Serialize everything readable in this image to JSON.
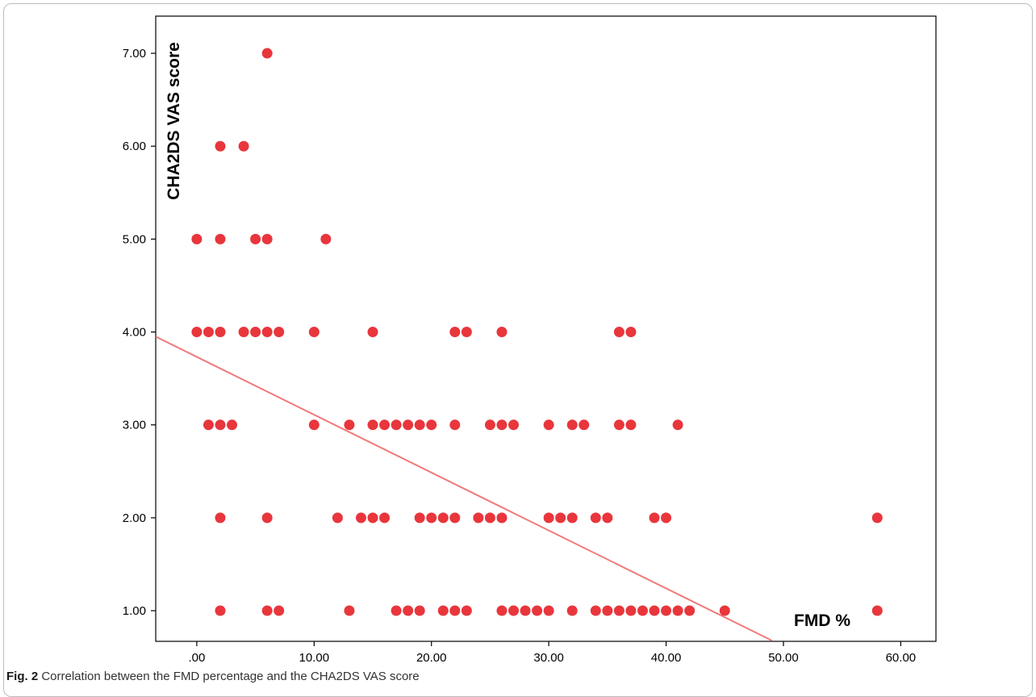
{
  "caption": {
    "label": "Fig. 2",
    "text": "Correlation between the FMD percentage and the CHA2DS VAS score"
  },
  "chart_data": {
    "type": "scatter",
    "title": "",
    "xlabel": "FMD %",
    "ylabel": "CHA2DS VAS score",
    "xlim": [
      -3.5,
      63
    ],
    "ylim": [
      0.67,
      7.4
    ],
    "x_ticks": [
      0,
      10,
      20,
      30,
      40,
      50,
      60
    ],
    "x_tick_labels": [
      ".00",
      "10.00",
      "20.00",
      "30.00",
      "40.00",
      "50.00",
      "60.00"
    ],
    "y_ticks": [
      1,
      2,
      3,
      4,
      5,
      6,
      7
    ],
    "y_tick_labels": [
      "1.00",
      "2.00",
      "3.00",
      "4.00",
      "5.00",
      "6.00",
      "7.00"
    ],
    "grid": false,
    "legend": "none",
    "point_color": "#e8363c",
    "line_color": "#f07a7a",
    "fit_line": {
      "x": [
        -3.5,
        49
      ],
      "y": [
        3.95,
        0.68
      ]
    },
    "points": [
      {
        "x": 6,
        "y": 7
      },
      {
        "x": 2,
        "y": 6
      },
      {
        "x": 4,
        "y": 6
      },
      {
        "x": 0,
        "y": 5
      },
      {
        "x": 2,
        "y": 5
      },
      {
        "x": 5,
        "y": 5
      },
      {
        "x": 6,
        "y": 5
      },
      {
        "x": 11,
        "y": 5
      },
      {
        "x": 0,
        "y": 4
      },
      {
        "x": 1,
        "y": 4
      },
      {
        "x": 2,
        "y": 4
      },
      {
        "x": 4,
        "y": 4
      },
      {
        "x": 5,
        "y": 4
      },
      {
        "x": 6,
        "y": 4
      },
      {
        "x": 7,
        "y": 4
      },
      {
        "x": 10,
        "y": 4
      },
      {
        "x": 15,
        "y": 4
      },
      {
        "x": 22,
        "y": 4
      },
      {
        "x": 23,
        "y": 4
      },
      {
        "x": 26,
        "y": 4
      },
      {
        "x": 36,
        "y": 4
      },
      {
        "x": 37,
        "y": 4
      },
      {
        "x": 1,
        "y": 3
      },
      {
        "x": 2,
        "y": 3
      },
      {
        "x": 3,
        "y": 3
      },
      {
        "x": 10,
        "y": 3
      },
      {
        "x": 13,
        "y": 3
      },
      {
        "x": 15,
        "y": 3
      },
      {
        "x": 16,
        "y": 3
      },
      {
        "x": 17,
        "y": 3
      },
      {
        "x": 18,
        "y": 3
      },
      {
        "x": 19,
        "y": 3
      },
      {
        "x": 20,
        "y": 3
      },
      {
        "x": 22,
        "y": 3
      },
      {
        "x": 25,
        "y": 3
      },
      {
        "x": 26,
        "y": 3
      },
      {
        "x": 27,
        "y": 3
      },
      {
        "x": 30,
        "y": 3
      },
      {
        "x": 32,
        "y": 3
      },
      {
        "x": 33,
        "y": 3
      },
      {
        "x": 36,
        "y": 3
      },
      {
        "x": 37,
        "y": 3
      },
      {
        "x": 41,
        "y": 3
      },
      {
        "x": 2,
        "y": 2
      },
      {
        "x": 6,
        "y": 2
      },
      {
        "x": 12,
        "y": 2
      },
      {
        "x": 14,
        "y": 2
      },
      {
        "x": 15,
        "y": 2
      },
      {
        "x": 16,
        "y": 2
      },
      {
        "x": 19,
        "y": 2
      },
      {
        "x": 20,
        "y": 2
      },
      {
        "x": 21,
        "y": 2
      },
      {
        "x": 22,
        "y": 2
      },
      {
        "x": 24,
        "y": 2
      },
      {
        "x": 25,
        "y": 2
      },
      {
        "x": 26,
        "y": 2
      },
      {
        "x": 30,
        "y": 2
      },
      {
        "x": 31,
        "y": 2
      },
      {
        "x": 32,
        "y": 2
      },
      {
        "x": 34,
        "y": 2
      },
      {
        "x": 35,
        "y": 2
      },
      {
        "x": 39,
        "y": 2
      },
      {
        "x": 40,
        "y": 2
      },
      {
        "x": 58,
        "y": 2
      },
      {
        "x": 2,
        "y": 1
      },
      {
        "x": 6,
        "y": 1
      },
      {
        "x": 7,
        "y": 1
      },
      {
        "x": 13,
        "y": 1
      },
      {
        "x": 17,
        "y": 1
      },
      {
        "x": 18,
        "y": 1
      },
      {
        "x": 19,
        "y": 1
      },
      {
        "x": 21,
        "y": 1
      },
      {
        "x": 22,
        "y": 1
      },
      {
        "x": 23,
        "y": 1
      },
      {
        "x": 26,
        "y": 1
      },
      {
        "x": 27,
        "y": 1
      },
      {
        "x": 28,
        "y": 1
      },
      {
        "x": 29,
        "y": 1
      },
      {
        "x": 30,
        "y": 1
      },
      {
        "x": 32,
        "y": 1
      },
      {
        "x": 34,
        "y": 1
      },
      {
        "x": 35,
        "y": 1
      },
      {
        "x": 36,
        "y": 1
      },
      {
        "x": 37,
        "y": 1
      },
      {
        "x": 38,
        "y": 1
      },
      {
        "x": 39,
        "y": 1
      },
      {
        "x": 40,
        "y": 1
      },
      {
        "x": 41,
        "y": 1
      },
      {
        "x": 42,
        "y": 1
      },
      {
        "x": 45,
        "y": 1
      },
      {
        "x": 58,
        "y": 1
      }
    ]
  }
}
